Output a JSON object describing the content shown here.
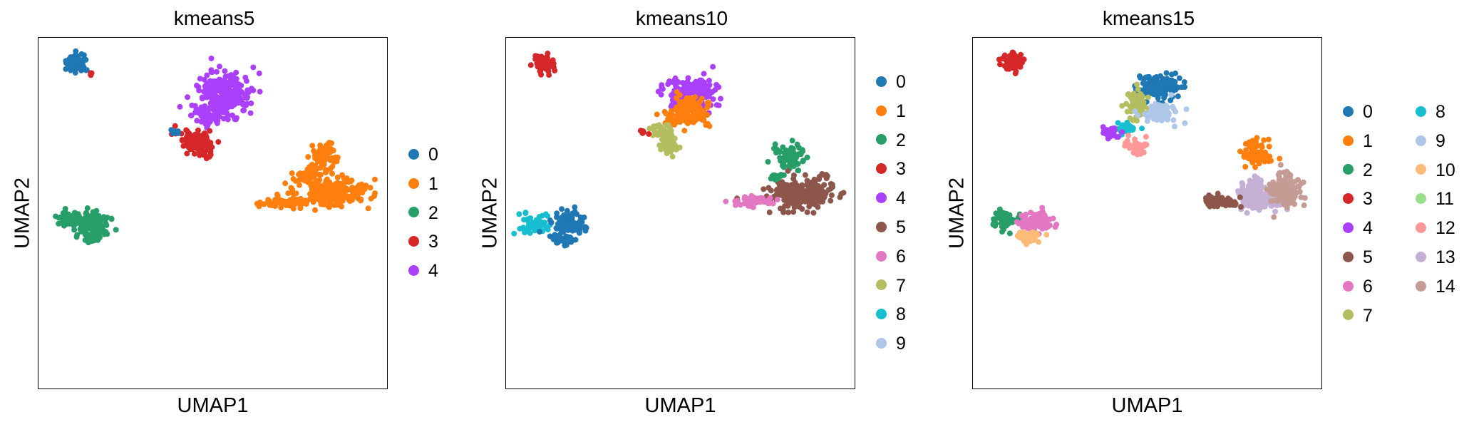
{
  "chart_data": [
    {
      "type": "scatter",
      "title": "kmeans5",
      "xlabel": "UMAP1",
      "ylabel": "UMAP2",
      "legend": "right",
      "grid": false,
      "series": [
        {
          "name": "0",
          "color": "#1f77b4"
        },
        {
          "name": "1",
          "color": "#ff7f0e"
        },
        {
          "name": "2",
          "color": "#279e68"
        },
        {
          "name": "3",
          "color": "#d62728"
        },
        {
          "name": "4",
          "color": "#aa40fc"
        }
      ]
    },
    {
      "type": "scatter",
      "title": "kmeans10",
      "xlabel": "UMAP1",
      "ylabel": "UMAP2",
      "legend": "right",
      "grid": false,
      "series": [
        {
          "name": "0",
          "color": "#1f77b4"
        },
        {
          "name": "1",
          "color": "#ff7f0e"
        },
        {
          "name": "2",
          "color": "#279e68"
        },
        {
          "name": "3",
          "color": "#d62728"
        },
        {
          "name": "4",
          "color": "#aa40fc"
        },
        {
          "name": "5",
          "color": "#8c564b"
        },
        {
          "name": "6",
          "color": "#e377c2"
        },
        {
          "name": "7",
          "color": "#b5bd61"
        },
        {
          "name": "8",
          "color": "#17becf"
        },
        {
          "name": "9",
          "color": "#aec7e8"
        }
      ]
    },
    {
      "type": "scatter",
      "title": "kmeans15",
      "xlabel": "UMAP1",
      "ylabel": "UMAP2",
      "legend": "right",
      "grid": false,
      "series": [
        {
          "name": "0",
          "color": "#1f77b4"
        },
        {
          "name": "1",
          "color": "#ff7f0e"
        },
        {
          "name": "2",
          "color": "#279e68"
        },
        {
          "name": "3",
          "color": "#d62728"
        },
        {
          "name": "4",
          "color": "#aa40fc"
        },
        {
          "name": "5",
          "color": "#8c564b"
        },
        {
          "name": "6",
          "color": "#e377c2"
        },
        {
          "name": "7",
          "color": "#b5bd61"
        },
        {
          "name": "8",
          "color": "#17becf"
        },
        {
          "name": "9",
          "color": "#aec7e8"
        },
        {
          "name": "10",
          "color": "#ffbb78"
        },
        {
          "name": "11",
          "color": "#98df8a"
        },
        {
          "name": "12",
          "color": "#ff9896"
        },
        {
          "name": "13",
          "color": "#c5b0d5"
        },
        {
          "name": "14",
          "color": "#c49c94"
        }
      ]
    }
  ]
}
